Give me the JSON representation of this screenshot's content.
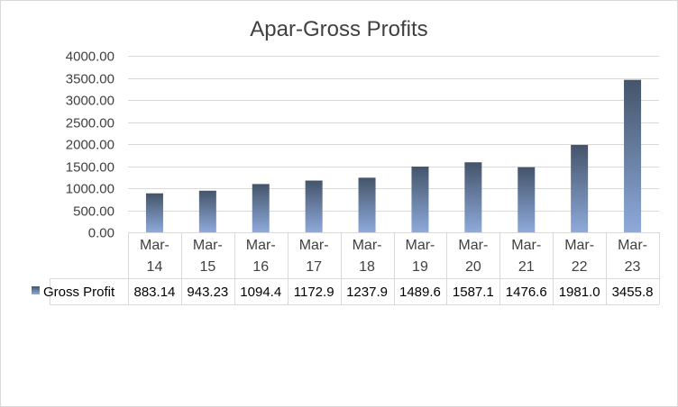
{
  "chart_data": {
    "type": "bar",
    "title": "Apar-Gross Profits",
    "categories": [
      "Mar-14",
      "Mar-15",
      "Mar-16",
      "Mar-17",
      "Mar-18",
      "Mar-19",
      "Mar-20",
      "Mar-21",
      "Mar-22",
      "Mar-23"
    ],
    "category_lines": [
      [
        "Mar-",
        "14"
      ],
      [
        "Mar-",
        "15"
      ],
      [
        "Mar-",
        "16"
      ],
      [
        "Mar-",
        "17"
      ],
      [
        "Mar-",
        "18"
      ],
      [
        "Mar-",
        "19"
      ],
      [
        "Mar-",
        "20"
      ],
      [
        "Mar-",
        "21"
      ],
      [
        "Mar-",
        "22"
      ],
      [
        "Mar-",
        "23"
      ]
    ],
    "series": [
      {
        "name": "Gross Profit",
        "values": [
          883.14,
          943.23,
          1094.4,
          1172.9,
          1237.9,
          1489.6,
          1587.1,
          1476.6,
          1981.0,
          3455.8
        ],
        "value_labels": [
          "883.14",
          "943.23",
          "1094.4",
          "1172.9",
          "1237.9",
          "1489.6",
          "1587.1",
          "1476.6",
          "1981.0",
          "3455.8"
        ]
      }
    ],
    "ylim": [
      0,
      4000
    ],
    "yticks": [
      "0.00",
      "500.00",
      "1000.00",
      "1500.00",
      "2000.00",
      "2500.00",
      "3000.00",
      "3500.00",
      "4000.00"
    ],
    "xlabel": "",
    "ylabel": "",
    "grid": true,
    "legend": "data-table",
    "colors": {
      "bar_top": "#44546a",
      "bar_bottom": "#8eaadb",
      "grid": "#d9d9d9",
      "text": "#404040"
    }
  }
}
